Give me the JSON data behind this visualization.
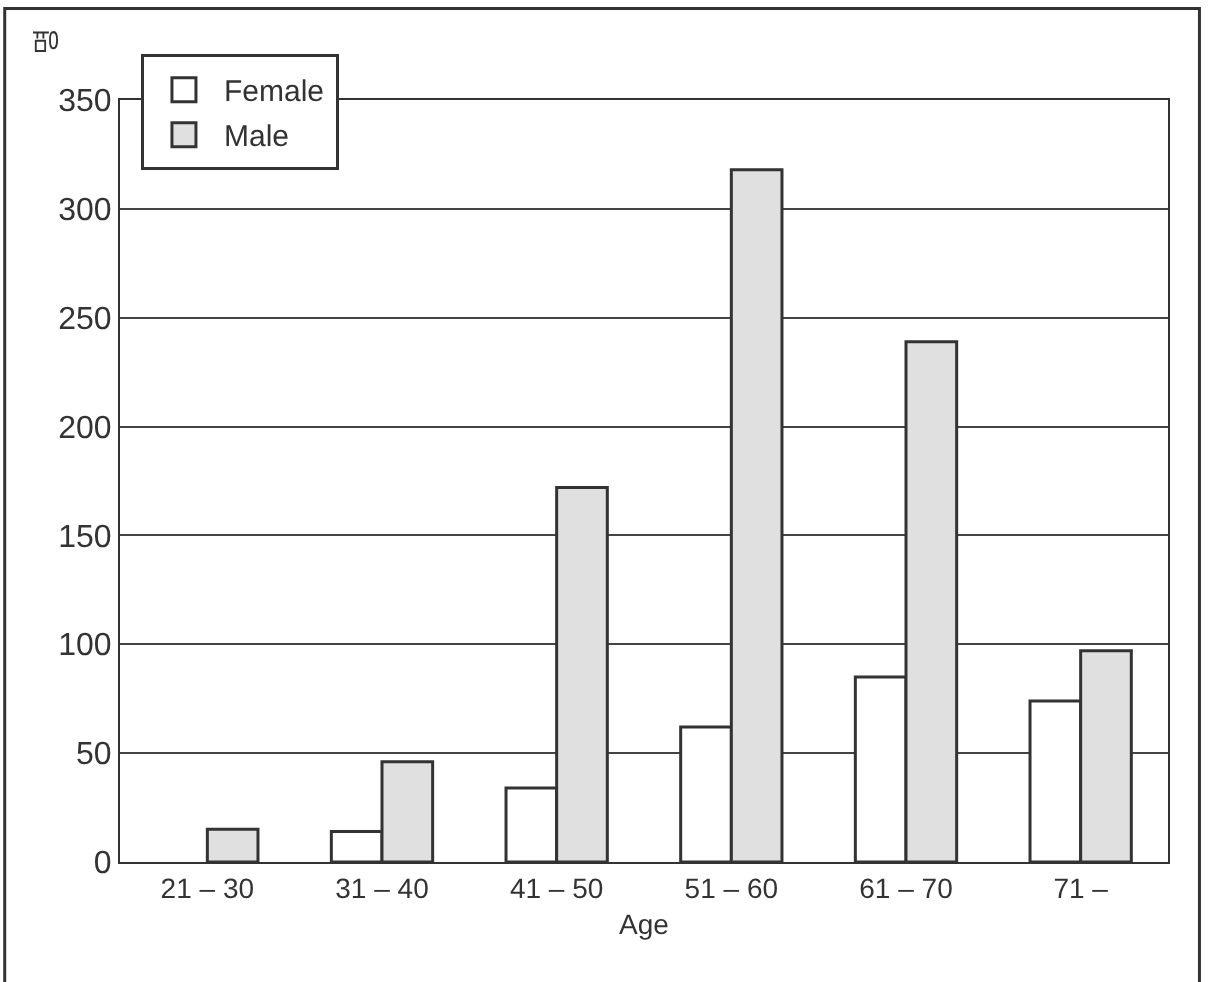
{
  "chart_data": {
    "type": "bar",
    "ylabel": "명",
    "xlabel": "Age",
    "categories": [
      "21 – 30",
      "31 – 40",
      "41 – 50",
      "51 – 60",
      "61 – 70",
      "71 –"
    ],
    "series": [
      {
        "name": "Female",
        "color": "#ffffff",
        "values": [
          null,
          14,
          34,
          62,
          85,
          74
        ]
      },
      {
        "name": "Male",
        "color": "#e0e0e0",
        "values": [
          15,
          46,
          172,
          318,
          239,
          97
        ]
      }
    ],
    "ylim": [
      0,
      350
    ],
    "yticks": [
      0,
      50,
      100,
      150,
      200,
      250,
      300,
      350
    ],
    "grid": "y",
    "legend": "top left"
  }
}
